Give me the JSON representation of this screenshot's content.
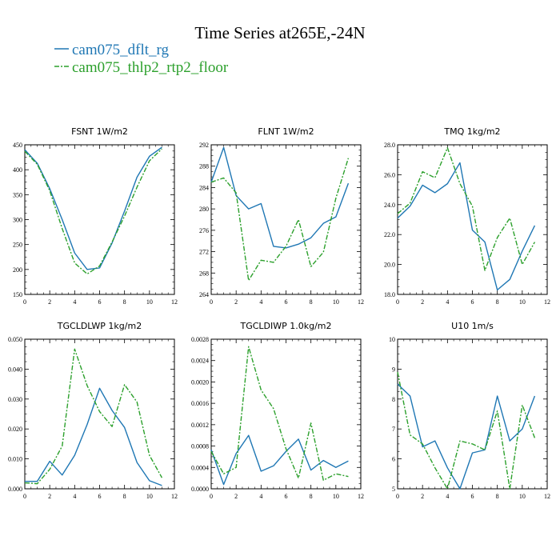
{
  "figure": {
    "title": "Time Series at265E,-24N",
    "legend": [
      {
        "name": "cam075_dflt_rg",
        "color": "#1f77b4"
      },
      {
        "name": "cam075_thlp2_rtp2_floor",
        "color": "#2ca02c"
      }
    ]
  },
  "chart_data": [
    {
      "type": "line",
      "title": "FSNT   1W/m2",
      "x": [
        0,
        1,
        2,
        3,
        4,
        5,
        6,
        7,
        8,
        9,
        10,
        11
      ],
      "xlim": [
        0,
        12
      ],
      "xticks": [
        0,
        2,
        4,
        6,
        8,
        10,
        12
      ],
      "ylim": [
        150,
        450
      ],
      "yticks": [
        "150",
        "200",
        "250",
        "300",
        "350",
        "400",
        "450"
      ],
      "series": [
        {
          "name": "cam075_dflt_rg",
          "values": [
            440,
            413,
            362,
            300,
            233,
            200,
            203,
            253,
            317,
            385,
            427,
            445
          ]
        },
        {
          "name": "cam075_thlp2_rtp2_floor",
          "values": [
            437,
            411,
            358,
            282,
            213,
            191,
            207,
            255,
            307,
            365,
            418,
            442
          ]
        }
      ]
    },
    {
      "type": "line",
      "title": "FLNT   1W/m2",
      "x": [
        0,
        1,
        2,
        3,
        4,
        5,
        6,
        7,
        8,
        9,
        10,
        11
      ],
      "xlim": [
        0,
        12
      ],
      "xticks": [
        0,
        2,
        4,
        6,
        8,
        10,
        12
      ],
      "ylim": [
        264,
        292
      ],
      "yticks": [
        "264",
        "268",
        "272",
        "276",
        "280",
        "284",
        "288",
        "292"
      ],
      "series": [
        {
          "name": "cam075_dflt_rg",
          "values": [
            285.0,
            291.5,
            282.5,
            280.0,
            281.0,
            273.0,
            272.7,
            273.4,
            274.6,
            277.3,
            278.5,
            284.8
          ]
        },
        {
          "name": "cam075_thlp2_rtp2_floor",
          "values": [
            285.0,
            285.8,
            283.0,
            266.6,
            270.4,
            270.0,
            273.0,
            278.0,
            269.2,
            271.9,
            282.0,
            289.5
          ]
        }
      ]
    },
    {
      "type": "line",
      "title": "TMQ   1kg/m2",
      "x": [
        0,
        1,
        2,
        3,
        4,
        5,
        6,
        7,
        8,
        9,
        10,
        11
      ],
      "xlim": [
        0,
        12
      ],
      "xticks": [
        0,
        2,
        4,
        6,
        8,
        10,
        12
      ],
      "ylim": [
        18,
        28
      ],
      "yticks": [
        "18.0",
        "20.0",
        "22.0",
        "24.0",
        "26.0",
        "28.0"
      ],
      "series": [
        {
          "name": "cam075_dflt_rg",
          "values": [
            23.1,
            23.9,
            25.3,
            24.8,
            25.4,
            26.8,
            22.3,
            21.5,
            18.3,
            19.0,
            20.9,
            22.6
          ]
        },
        {
          "name": "cam075_thlp2_rtp2_floor",
          "values": [
            23.4,
            24.1,
            26.2,
            25.8,
            27.8,
            25.4,
            23.9,
            19.6,
            21.8,
            23.1,
            20.0,
            21.5
          ]
        }
      ]
    },
    {
      "type": "line",
      "title": "TGCLDLWP   1kg/m2",
      "x": [
        0,
        1,
        2,
        3,
        4,
        5,
        6,
        7,
        8,
        9,
        10,
        11
      ],
      "xlim": [
        0,
        12
      ],
      "xticks": [
        0,
        2,
        4,
        6,
        8,
        10,
        12
      ],
      "ylim": [
        0,
        0.05
      ],
      "yticks": [
        "0.000",
        "0.010",
        "0.020",
        "0.030",
        "0.040",
        "0.050"
      ],
      "series": [
        {
          "name": "cam075_dflt_rg",
          "values": [
            0.0025,
            0.0025,
            0.0092,
            0.0046,
            0.0112,
            0.0215,
            0.0336,
            0.0262,
            0.0205,
            0.0088,
            0.0027,
            0.0011
          ]
        },
        {
          "name": "cam075_thlp2_rtp2_floor",
          "values": [
            0.002,
            0.0017,
            0.0065,
            0.0143,
            0.0467,
            0.0345,
            0.0258,
            0.0208,
            0.0348,
            0.029,
            0.0112,
            0.0037
          ]
        }
      ]
    },
    {
      "type": "line",
      "title": "TGCLDIWP   1.0kg/m2",
      "x": [
        0,
        1,
        2,
        3,
        4,
        5,
        6,
        7,
        8,
        9,
        10,
        11
      ],
      "xlim": [
        0,
        12
      ],
      "xticks": [
        0,
        2,
        4,
        6,
        8,
        10,
        12
      ],
      "ylim": [
        0,
        0.0028
      ],
      "yticks": [
        "0.0000",
        "0.0004",
        "0.0008",
        "0.0012",
        "0.0016",
        "0.0020",
        "0.0024",
        "0.0028"
      ],
      "series": [
        {
          "name": "cam075_dflt_rg",
          "values": [
            0.00073,
            8e-05,
            0.00066,
            0.001,
            0.00033,
            0.00043,
            0.0007,
            0.00093,
            0.00035,
            0.00053,
            0.0004,
            0.00052
          ]
        },
        {
          "name": "cam075_thlp2_rtp2_floor",
          "values": [
            0.0007,
            0.00028,
            0.0004,
            0.00266,
            0.00185,
            0.0015,
            0.00075,
            0.0002,
            0.00123,
            0.00016,
            0.00028,
            0.00023
          ]
        }
      ]
    },
    {
      "type": "line",
      "title": "U10   1m/s",
      "x": [
        0,
        1,
        2,
        3,
        4,
        5,
        6,
        7,
        8,
        9,
        10,
        11
      ],
      "xlim": [
        0,
        12
      ],
      "xticks": [
        0,
        2,
        4,
        6,
        8,
        10,
        12
      ],
      "ylim": [
        5,
        10
      ],
      "yticks": [
        "5",
        "6",
        "7",
        "8",
        "9",
        "10"
      ],
      "series": [
        {
          "name": "cam075_dflt_rg",
          "values": [
            8.5,
            8.1,
            6.4,
            6.6,
            5.7,
            5.0,
            6.2,
            6.3,
            8.1,
            6.6,
            7.0,
            8.1
          ]
        },
        {
          "name": "cam075_thlp2_rtp2_floor",
          "values": [
            8.9,
            6.8,
            6.5,
            5.7,
            5.0,
            6.6,
            6.5,
            6.3,
            7.6,
            5.0,
            7.8,
            6.7
          ]
        }
      ]
    }
  ]
}
